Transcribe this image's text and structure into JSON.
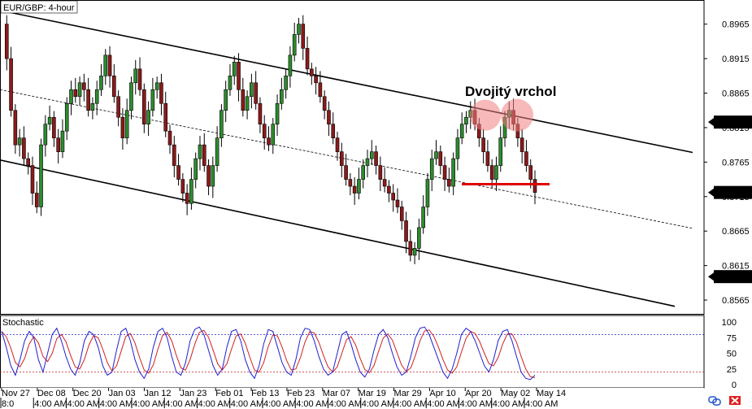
{
  "chart_data": {
    "type": "candlestick",
    "title": "EUR/GBP: 4-hour",
    "annotation": "Dvojitý vrchol",
    "y_ticks": [
      "0.8965",
      "0.8915",
      "0.8865",
      "0.8815",
      "0.8765",
      "0.8715",
      "0.8665",
      "0.8615",
      "0.8565"
    ],
    "ylim": [
      0.8545,
      0.9
    ],
    "price_labels": [
      {
        "text": "0.8823",
        "value": 0.8823
      },
      {
        "text": "0.8721",
        "value": 0.8721
      },
      {
        "text": "0.8599",
        "value": 0.8599
      }
    ],
    "x_labels": [
      "Nov 27",
      "Dec 08",
      "Dec 20",
      "Jan 03",
      "Jan 12",
      "Jan 23",
      "Feb 01",
      "Feb 13",
      "Feb 23",
      "Mar 07",
      "Mar 19",
      "Mar 29",
      "Apr 10",
      "Apr 20",
      "May 02",
      "May 14"
    ],
    "time_labels": [
      "8:0",
      "4:00 AM",
      "4:00 AM",
      "4:00 AM",
      "4:00 AM",
      "4:00 AM",
      "4:00 AM",
      "4:00 AM",
      "4:00 AM",
      "4:00 AM",
      "4:00 AM",
      "4:00 AM",
      "4:00 AM",
      "4:00 AM",
      "4:00 AM",
      "4:00 AM",
      "4:00 AM"
    ],
    "price_path": [
      0.8965,
      0.8915,
      0.884,
      0.879,
      0.88,
      0.877,
      0.876,
      0.872,
      0.87,
      0.879,
      0.882,
      0.883,
      0.88,
      0.878,
      0.881,
      0.885,
      0.887,
      0.886,
      0.888,
      0.887,
      0.884,
      0.885,
      0.887,
      0.889,
      0.892,
      0.889,
      0.886,
      0.883,
      0.88,
      0.884,
      0.888,
      0.89,
      0.887,
      0.882,
      0.884,
      0.887,
      0.888,
      0.885,
      0.881,
      0.879,
      0.876,
      0.874,
      0.872,
      0.8705,
      0.874,
      0.877,
      0.879,
      0.876,
      0.873,
      0.876,
      0.88,
      0.884,
      0.887,
      0.889,
      0.891,
      0.887,
      0.884,
      0.886,
      0.888,
      0.885,
      0.882,
      0.88,
      0.879,
      0.882,
      0.885,
      0.887,
      0.889,
      0.892,
      0.895,
      0.8965,
      0.893,
      0.89,
      0.889,
      0.888,
      0.886,
      0.884,
      0.882,
      0.88,
      0.878,
      0.876,
      0.874,
      0.873,
      0.872,
      0.874,
      0.876,
      0.877,
      0.878,
      0.876,
      0.874,
      0.873,
      0.872,
      0.871,
      0.87,
      0.868,
      0.865,
      0.863,
      0.864,
      0.867,
      0.87,
      0.874,
      0.877,
      0.878,
      0.876,
      0.874,
      0.873,
      0.877,
      0.88,
      0.882,
      0.883,
      0.884,
      0.882,
      0.88,
      0.878,
      0.876,
      0.874,
      0.876,
      0.88,
      0.883,
      0.884,
      0.882,
      0.88,
      0.878,
      0.876,
      0.874,
      0.8721
    ],
    "stochastic": {
      "label": "Stochastic",
      "levels": [
        "100",
        "75",
        "50",
        "25",
        "0"
      ],
      "overbought": 80,
      "oversold": 20,
      "k": [
        85,
        60,
        30,
        15,
        40,
        70,
        85,
        75,
        40,
        20,
        50,
        80,
        90,
        70,
        45,
        25,
        15,
        35,
        70,
        85,
        80,
        60,
        30,
        15,
        20,
        55,
        85,
        90,
        70,
        40,
        20,
        10,
        25,
        60,
        85,
        90,
        75,
        45,
        20,
        15,
        35,
        70,
        88,
        92,
        80,
        55,
        30,
        15,
        25,
        60,
        85,
        88,
        70,
        40,
        20,
        10,
        30,
        65,
        88,
        85,
        60,
        35,
        20,
        15,
        40,
        75,
        90,
        88,
        70,
        45,
        25,
        15,
        20,
        50,
        80,
        85,
        65,
        40,
        20,
        12,
        25,
        55,
        80,
        88,
        75,
        50,
        28,
        15,
        20,
        45,
        75,
        90,
        92,
        80,
        60,
        40,
        20,
        10,
        25,
        50,
        80,
        90,
        85,
        70,
        50,
        30,
        20,
        40,
        70,
        85,
        88,
        70,
        45,
        20,
        10,
        8,
        15
      ]
    }
  },
  "ui": {
    "bottom_right_icons": [
      "link-icon",
      "flag-icon"
    ]
  }
}
